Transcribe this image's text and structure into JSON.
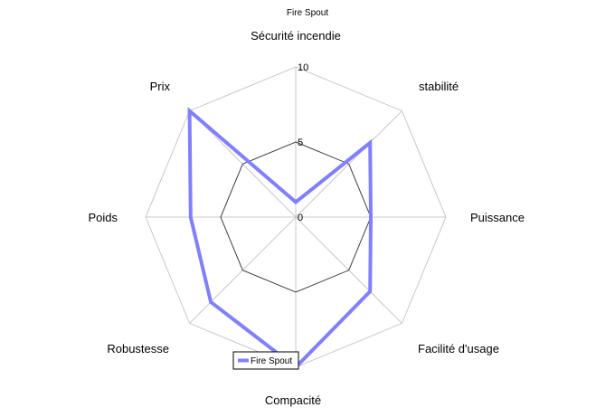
{
  "chart_data": {
    "type": "radar",
    "title": "Fire Spout",
    "axes": [
      "Sécurité incendie",
      "stabilité",
      "Puissance",
      "Facilité d'usage",
      "Compacité",
      "Robustesse",
      "Poids",
      "Prix"
    ],
    "rlim": [
      0,
      10
    ],
    "ticks": [
      "0",
      "5",
      "10"
    ],
    "series": [
      {
        "name": "Fire Spout",
        "values": [
          1,
          7,
          5,
          7,
          10,
          8,
          7,
          10
        ],
        "color": "#8080ff"
      }
    ],
    "gridline_color": "#c8c8c8",
    "mid_ring_color": "#404040",
    "legend": "bottom-center"
  }
}
